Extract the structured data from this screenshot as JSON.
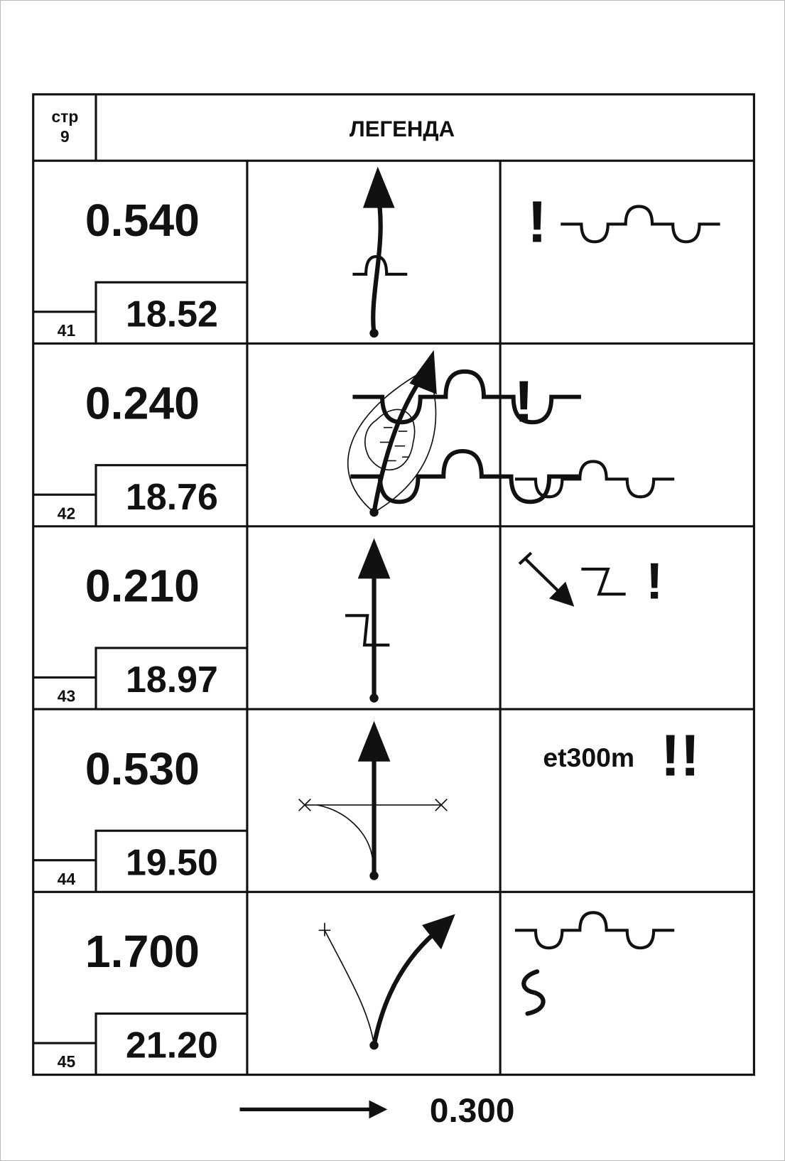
{
  "header": {
    "page_label": "стр",
    "page_number": "9",
    "title": "ЛЕГЕНДА"
  },
  "rows": [
    {
      "number": "41",
      "distance": "0.540",
      "total": "18.52",
      "notes": [
        "!"
      ]
    },
    {
      "number": "42",
      "distance": "0.240",
      "total": "18.76",
      "notes": [
        "!"
      ]
    },
    {
      "number": "43",
      "distance": "0.210",
      "total": "18.97",
      "notes": [
        "!"
      ]
    },
    {
      "number": "44",
      "distance": "0.530",
      "total": "19.50",
      "notes": [
        "et300m",
        "!!"
      ]
    },
    {
      "number": "45",
      "distance": "1.700",
      "total": "21.20"
    }
  ],
  "footer": {
    "next_distance": "0.300"
  }
}
